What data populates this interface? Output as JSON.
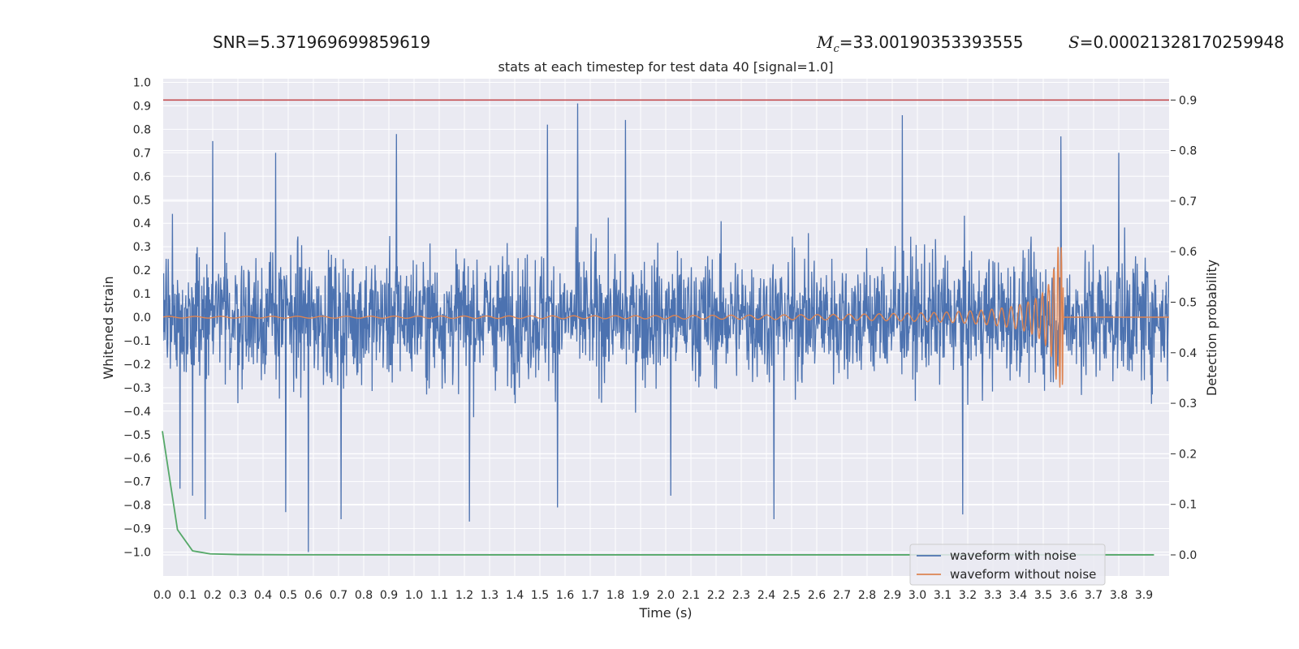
{
  "header": {
    "snr_text": "SNR=5.371969699859619",
    "mc_symbol": "M",
    "mc_sub": "c",
    "mc_text": "=33.00190353393555",
    "s_symbol": "S",
    "s_text": "=0.00021328170259948"
  },
  "chart_data": {
    "type": "line",
    "title": "stats at each timestep for test data 40 [signal=1.0]",
    "xlabel": "Time (s)",
    "ylabel": "Whitened strain",
    "y2label": "Detection probability",
    "xlim": [
      0.0,
      4.0
    ],
    "ylim": [
      -1.1,
      1.0
    ],
    "y2lim": [
      -0.05,
      0.92
    ],
    "x_ticks": [
      "0.0",
      "0.1",
      "0.2",
      "0.3",
      "0.4",
      "0.5",
      "0.6",
      "0.7",
      "0.8",
      "0.9",
      "1.0",
      "1.1",
      "1.2",
      "1.3",
      "1.4",
      "1.5",
      "1.6",
      "1.7",
      "1.8",
      "1.9",
      "2.0",
      "2.1",
      "2.2",
      "2.3",
      "2.4",
      "2.5",
      "2.6",
      "2.7",
      "2.8",
      "2.9",
      "3.0",
      "3.1",
      "3.2",
      "3.3",
      "3.4",
      "3.5",
      "3.6",
      "3.7",
      "3.8",
      "3.9"
    ],
    "y_ticks": [
      "1.0",
      "0.9",
      "0.8",
      "0.7",
      "0.6",
      "0.5",
      "0.4",
      "0.3",
      "0.2",
      "0.1",
      "0.0",
      "−0.1",
      "−0.2",
      "−0.3",
      "−0.4",
      "−0.5",
      "−0.6",
      "−0.7",
      "−0.8",
      "−0.9",
      "−1.0"
    ],
    "y2_ticks": [
      "0.9",
      "0.8",
      "0.7",
      "0.6",
      "0.5",
      "0.4",
      "0.3",
      "0.2",
      "0.1",
      "0.0"
    ],
    "threshold": {
      "value": 0.9,
      "axis": "right",
      "color": "#c44e52"
    },
    "legend": {
      "placement": "lower-right",
      "entries": [
        "waveform with noise",
        "waveform without noise"
      ]
    },
    "series": [
      {
        "name": "waveform with noise",
        "color": "#4c72b0",
        "axis": "left",
        "kind": "noise",
        "x_range": [
          0.0,
          4.0
        ],
        "notable_peaks": [
          {
            "x": 0.04,
            "y": 0.44
          },
          {
            "x": 0.07,
            "y": -0.73
          },
          {
            "x": 0.12,
            "y": -0.76
          },
          {
            "x": 0.17,
            "y": -0.86
          },
          {
            "x": 0.2,
            "y": 0.75
          },
          {
            "x": 0.45,
            "y": 0.7
          },
          {
            "x": 0.49,
            "y": -0.83
          },
          {
            "x": 0.58,
            "y": -1.0
          },
          {
            "x": 0.71,
            "y": -0.86
          },
          {
            "x": 0.93,
            "y": 0.78
          },
          {
            "x": 1.22,
            "y": -0.87
          },
          {
            "x": 1.53,
            "y": 0.82
          },
          {
            "x": 1.57,
            "y": -0.81
          },
          {
            "x": 1.65,
            "y": 0.91
          },
          {
            "x": 1.84,
            "y": 0.84
          },
          {
            "x": 2.02,
            "y": -0.76
          },
          {
            "x": 2.43,
            "y": -0.86
          },
          {
            "x": 2.94,
            "y": 0.86
          },
          {
            "x": 3.18,
            "y": -0.84
          },
          {
            "x": 3.57,
            "y": 0.77
          },
          {
            "x": 3.8,
            "y": 0.7
          }
        ]
      },
      {
        "name": "waveform without noise",
        "color": "#dd8452",
        "axis": "left",
        "kind": "chirp",
        "x_range": [
          0.0,
          4.0
        ],
        "merger_time": 3.58,
        "peak_amplitude": 0.3
      },
      {
        "name": "",
        "color": "#55a868",
        "axis": "right",
        "x": [
          0.0,
          0.06,
          0.12,
          0.19,
          0.3,
          0.5,
          1.0,
          2.0,
          3.0,
          3.94
        ],
        "y": [
          0.245,
          0.05,
          0.008,
          0.002,
          0.0007,
          0.0002,
          0.0001,
          0.0001,
          0.0001,
          0.0001
        ]
      }
    ]
  }
}
